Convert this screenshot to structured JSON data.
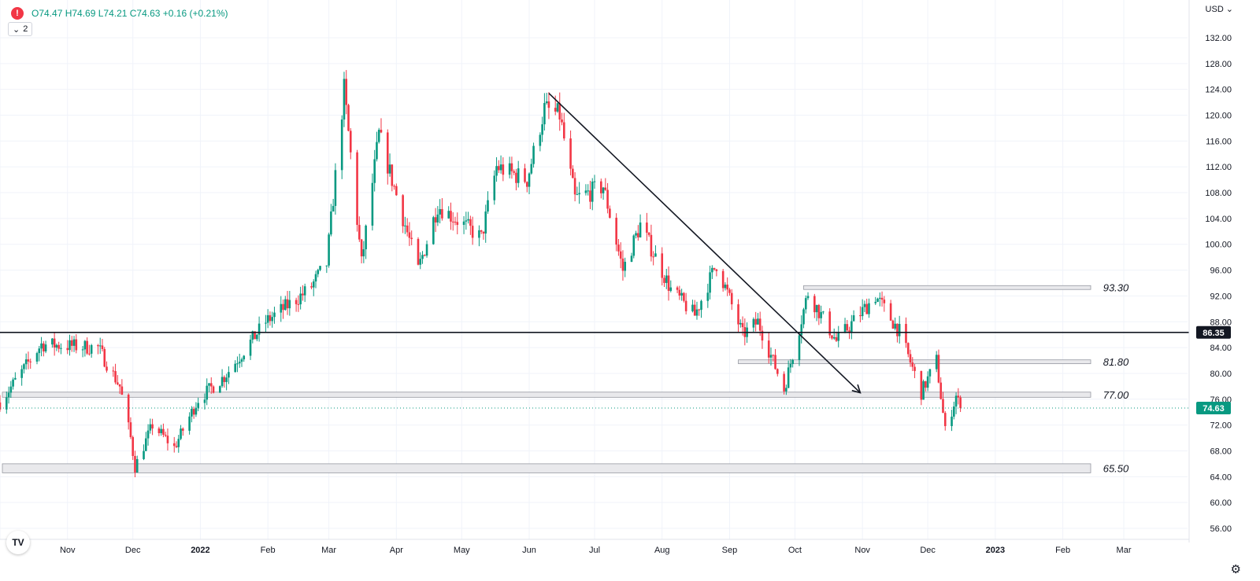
{
  "header": {
    "alert_symbol": "!",
    "ohlc": "O74.47 H74.69 L74.21 C74.63 +0.16 (+0.21%)",
    "collapse_label": "2",
    "collapse_icon": "chevron-down-icon",
    "currency": "USD",
    "logo": "TV",
    "settings_icon": "gear-icon"
  },
  "colors": {
    "up": "#089981",
    "down": "#f23645",
    "line": "#131722",
    "zone_fill": "#e9e9ec",
    "zone_stroke": "#9598a1"
  },
  "chart_data": {
    "type": "candlestick",
    "ylim": [
      56,
      132
    ],
    "y_ticks": [
      "56.00",
      "60.00",
      "64.00",
      "68.00",
      "72.00",
      "76.00",
      "80.00",
      "84.00",
      "88.00",
      "92.00",
      "96.00",
      "100.00",
      "104.00",
      "108.00",
      "112.00",
      "116.00",
      "120.00",
      "124.00",
      "128.00",
      "132.00"
    ],
    "x_tick_labels": [
      "Nov",
      "Dec",
      "2022",
      "Feb",
      "Mar",
      "Apr",
      "May",
      "Jun",
      "Jul",
      "Aug",
      "Sep",
      "Oct",
      "Nov",
      "Dec",
      "2023",
      "Feb",
      "Mar"
    ],
    "last_price": "74.63",
    "horizontal_level": {
      "label": "86.35",
      "value": 86.35
    },
    "zones": [
      {
        "label": "93.30",
        "top": 93.6,
        "bottom": 93.0,
        "start": "2022-10-05"
      },
      {
        "label": "81.80",
        "top": 82.1,
        "bottom": 81.5,
        "start": "2022-09-05"
      },
      {
        "label": "77.00",
        "top": 77.1,
        "bottom": 76.3,
        "start": "2021-10-01"
      },
      {
        "label": "65.50",
        "top": 66.0,
        "bottom": 64.6,
        "start": "2021-10-01"
      }
    ],
    "trendline": {
      "from": {
        "date": "2022-06-10",
        "value": 123.4
      },
      "to": {
        "date": "2022-10-31",
        "value": 77.0
      }
    },
    "path": [
      [
        "2021-10-01",
        75.5
      ],
      [
        "2021-10-20",
        84.5
      ],
      [
        "2021-11-15",
        84.0
      ],
      [
        "2021-11-25",
        78.0
      ],
      [
        "2021-11-30",
        70.0
      ],
      [
        "2021-12-02",
        65.5
      ],
      [
        "2021-12-10",
        72.0
      ],
      [
        "2021-12-20",
        68.5
      ],
      [
        "2021-12-31",
        76.0
      ],
      [
        "2022-01-12",
        79.5
      ],
      [
        "2022-01-31",
        88.0
      ],
      [
        "2022-02-20",
        93.0
      ],
      [
        "2022-02-28",
        97.0
      ],
      [
        "2022-03-08",
        124.0
      ],
      [
        "2022-03-16",
        97.0
      ],
      [
        "2022-03-24",
        117.0
      ],
      [
        "2022-04-11",
        96.0
      ],
      [
        "2022-04-20",
        106.0
      ],
      [
        "2022-05-10",
        101.0
      ],
      [
        "2022-05-17",
        112.0
      ],
      [
        "2022-05-31",
        110.0
      ],
      [
        "2022-06-08",
        121.0
      ],
      [
        "2022-06-15",
        120.0
      ],
      [
        "2022-06-22",
        107.0
      ],
      [
        "2022-07-05",
        109.0
      ],
      [
        "2022-07-14",
        96.0
      ],
      [
        "2022-07-22",
        103.0
      ],
      [
        "2022-08-05",
        93.0
      ],
      [
        "2022-08-16",
        89.0
      ],
      [
        "2022-08-26",
        97.0
      ],
      [
        "2022-09-07",
        86.0
      ],
      [
        "2022-09-14",
        88.0
      ],
      [
        "2022-09-26",
        77.5
      ],
      [
        "2022-10-07",
        92.5
      ],
      [
        "2022-10-20",
        85.0
      ],
      [
        "2022-11-07",
        92.0
      ],
      [
        "2022-11-18",
        86.5
      ],
      [
        "2022-11-28",
        77.0
      ],
      [
        "2022-12-05",
        82.0
      ],
      [
        "2022-12-09",
        71.0
      ],
      [
        "2022-12-14",
        76.5
      ],
      [
        "2022-12-16",
        74.63
      ]
    ]
  }
}
